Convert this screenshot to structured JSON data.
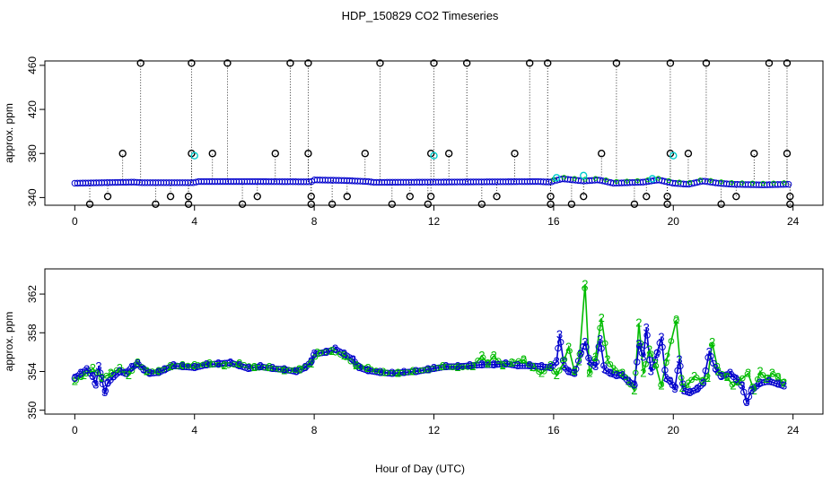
{
  "title": "HDP_150829  CO2 Timeseries",
  "xlabel": "Hour of Day (UTC)",
  "colors": {
    "black": "#000000",
    "blue": "#0000cc",
    "cyan": "#00cccc",
    "green": "#00bb00"
  },
  "chart_data": [
    {
      "type": "scatter",
      "ylabel": "approx. ppm",
      "xlim": [
        -1,
        25
      ],
      "ylim": [
        333,
        464
      ],
      "xticks": [
        0,
        4,
        8,
        12,
        16,
        20,
        24
      ],
      "xtick_labels": [
        "0",
        "4",
        "8",
        "12",
        "16",
        "20",
        "24"
      ],
      "yticks": [
        340,
        380,
        420,
        460
      ],
      "ytick_labels": [
        "340",
        "380",
        "420",
        "460"
      ],
      "baseline": [
        [
          0,
          353
        ],
        [
          2,
          354
        ],
        [
          2.2,
          353.5
        ],
        [
          4,
          353.5
        ],
        [
          4.1,
          354.5
        ],
        [
          6,
          354.5
        ],
        [
          7.9,
          354.3
        ],
        [
          8,
          356
        ],
        [
          9,
          355.5
        ],
        [
          9.8,
          354.5
        ],
        [
          10,
          353.8
        ],
        [
          12,
          354
        ],
        [
          15.5,
          354.5
        ],
        [
          15.9,
          354
        ],
        [
          16,
          355
        ],
        [
          16.3,
          357
        ],
        [
          17,
          355
        ],
        [
          17.5,
          356
        ],
        [
          18,
          353
        ],
        [
          19,
          354
        ],
        [
          19.5,
          356
        ],
        [
          20,
          353
        ],
        [
          20.5,
          352
        ],
        [
          21,
          355
        ],
        [
          21.5,
          353
        ],
        [
          22,
          352
        ],
        [
          23,
          351.5
        ],
        [
          23.8,
          352
        ]
      ],
      "spikes": [
        [
          2.2,
          462
        ],
        [
          3.9,
          462
        ],
        [
          5.1,
          462
        ],
        [
          7.2,
          462
        ],
        [
          7.8,
          462
        ],
        [
          10.2,
          462
        ],
        [
          12.0,
          462
        ],
        [
          13.1,
          462
        ],
        [
          15.2,
          462
        ],
        [
          15.8,
          462
        ],
        [
          18.1,
          462
        ],
        [
          19.9,
          462
        ],
        [
          21.1,
          462
        ],
        [
          23.2,
          462
        ],
        [
          23.8,
          462
        ],
        [
          1.6,
          380
        ],
        [
          3.9,
          380
        ],
        [
          4.6,
          380
        ],
        [
          6.7,
          380
        ],
        [
          7.8,
          380
        ],
        [
          9.7,
          380
        ],
        [
          11.9,
          380
        ],
        [
          12.5,
          380
        ],
        [
          14.7,
          380
        ],
        [
          17.6,
          380
        ],
        [
          19.9,
          380
        ],
        [
          20.5,
          380
        ],
        [
          22.7,
          380
        ],
        [
          23.8,
          380
        ],
        [
          1.1,
          341
        ],
        [
          3.2,
          341
        ],
        [
          3.8,
          341
        ],
        [
          6.1,
          341
        ],
        [
          7.9,
          341
        ],
        [
          9.1,
          341
        ],
        [
          11.2,
          341
        ],
        [
          11.9,
          341
        ],
        [
          14.1,
          341
        ],
        [
          15.9,
          341
        ],
        [
          17.0,
          341
        ],
        [
          19.1,
          341
        ],
        [
          19.8,
          341
        ],
        [
          22.1,
          341
        ],
        [
          23.9,
          341
        ],
        [
          0.5,
          334
        ],
        [
          2.7,
          334
        ],
        [
          3.8,
          334
        ],
        [
          5.6,
          334
        ],
        [
          7.9,
          334
        ],
        [
          8.6,
          334
        ],
        [
          10.6,
          334
        ],
        [
          11.8,
          334
        ],
        [
          13.6,
          334
        ],
        [
          15.9,
          334
        ],
        [
          16.6,
          334
        ],
        [
          18.7,
          334
        ],
        [
          19.8,
          334
        ],
        [
          21.6,
          334
        ],
        [
          23.9,
          334
        ]
      ],
      "cyan_points": [
        [
          4.0,
          378
        ],
        [
          12.0,
          378
        ],
        [
          20.0,
          378
        ],
        [
          16.1,
          358
        ],
        [
          17.0,
          360
        ],
        [
          19.3,
          357
        ]
      ]
    },
    {
      "type": "line",
      "ylabel": "approx. ppm",
      "xlim": [
        -1,
        25
      ],
      "ylim": [
        349.6,
        364.6
      ],
      "xticks": [
        0,
        4,
        8,
        12,
        16,
        20,
        24
      ],
      "xtick_labels": [
        "0",
        "4",
        "8",
        "12",
        "16",
        "20",
        "24"
      ],
      "yticks": [
        350,
        354,
        358,
        362
      ],
      "ytick_labels": [
        "350",
        "354",
        "358",
        "362"
      ],
      "series": [
        {
          "color": "#0000cc",
          "glyph": "3",
          "points": [
            [
              0,
              353.3
            ],
            [
              0.2,
              353.8
            ],
            [
              0.4,
              354.2
            ],
            [
              0.6,
              353.5
            ],
            [
              0.7,
              352.6
            ],
            [
              0.8,
              354.5
            ],
            [
              0.9,
              353.2
            ],
            [
              1.0,
              351.8
            ],
            [
              1.1,
              352.8
            ],
            [
              1.3,
              353.5
            ],
            [
              1.5,
              354.0
            ],
            [
              1.7,
              353.8
            ],
            [
              1.9,
              354.4
            ],
            [
              2.1,
              354.8
            ],
            [
              2.3,
              354.2
            ],
            [
              2.5,
              353.8
            ],
            [
              2.8,
              353.9
            ],
            [
              3.0,
              354.2
            ],
            [
              3.3,
              354.6
            ],
            [
              3.6,
              354.5
            ],
            [
              4.0,
              354.4
            ],
            [
              4.4,
              354.7
            ],
            [
              4.8,
              354.8
            ],
            [
              5.2,
              354.9
            ],
            [
              5.5,
              354.6
            ],
            [
              5.8,
              354.3
            ],
            [
              6.2,
              354.5
            ],
            [
              6.6,
              354.3
            ],
            [
              7.0,
              354.2
            ],
            [
              7.4,
              354.0
            ],
            [
              7.7,
              354.4
            ],
            [
              7.9,
              355.0
            ],
            [
              8.0,
              355.8
            ],
            [
              8.4,
              356.0
            ],
            [
              8.7,
              356.3
            ],
            [
              9.0,
              355.8
            ],
            [
              9.3,
              355.2
            ],
            [
              9.5,
              354.4
            ],
            [
              9.8,
              354.1
            ],
            [
              10.2,
              353.9
            ],
            [
              10.6,
              353.8
            ],
            [
              11.0,
              353.9
            ],
            [
              11.4,
              354.0
            ],
            [
              11.8,
              354.2
            ],
            [
              12.0,
              354.3
            ],
            [
              12.4,
              354.5
            ],
            [
              12.8,
              354.5
            ],
            [
              13.2,
              354.6
            ],
            [
              13.6,
              354.7
            ],
            [
              14.0,
              354.7
            ],
            [
              14.4,
              354.8
            ],
            [
              14.8,
              354.6
            ],
            [
              15.2,
              354.6
            ],
            [
              15.6,
              354.5
            ],
            [
              15.9,
              354.4
            ],
            [
              16.1,
              355.0
            ],
            [
              16.2,
              357.8
            ],
            [
              16.35,
              354.5
            ],
            [
              16.5,
              354.0
            ],
            [
              16.7,
              353.8
            ],
            [
              16.9,
              355.8
            ],
            [
              17.05,
              357.0
            ],
            [
              17.2,
              355.0
            ],
            [
              17.4,
              354.5
            ],
            [
              17.55,
              357.3
            ],
            [
              17.7,
              354.2
            ],
            [
              17.9,
              353.8
            ],
            [
              18.1,
              353.6
            ],
            [
              18.3,
              353.6
            ],
            [
              18.5,
              353.0
            ],
            [
              18.7,
              352.6
            ],
            [
              18.85,
              356.8
            ],
            [
              19.0,
              355.5
            ],
            [
              19.1,
              358.5
            ],
            [
              19.25,
              354.0
            ],
            [
              19.45,
              355.8
            ],
            [
              19.6,
              357.5
            ],
            [
              19.75,
              353.3
            ],
            [
              19.9,
              353.0
            ],
            [
              20.05,
              352.2
            ],
            [
              20.2,
              355.2
            ],
            [
              20.35,
              352.0
            ],
            [
              20.55,
              351.8
            ],
            [
              20.8,
              352.2
            ],
            [
              21.0,
              352.8
            ],
            [
              21.2,
              356.0
            ],
            [
              21.4,
              354.3
            ],
            [
              21.6,
              353.5
            ],
            [
              21.9,
              353.8
            ],
            [
              22.1,
              353.2
            ],
            [
              22.3,
              352.5
            ],
            [
              22.45,
              350.8
            ],
            [
              22.6,
              352.0
            ],
            [
              22.9,
              352.8
            ],
            [
              23.2,
              353.0
            ],
            [
              23.5,
              352.7
            ],
            [
              23.7,
              352.5
            ]
          ]
        },
        {
          "color": "#00bb00",
          "glyph": "2",
          "points": [
            [
              0,
              353.0
            ],
            [
              0.3,
              353.6
            ],
            [
              0.6,
              354.3
            ],
            [
              0.9,
              353.3
            ],
            [
              1.2,
              353.8
            ],
            [
              1.5,
              354.3
            ],
            [
              1.8,
              353.6
            ],
            [
              2.1,
              354.9
            ],
            [
              2.4,
              354.0
            ],
            [
              2.8,
              354.0
            ],
            [
              3.2,
              354.5
            ],
            [
              3.6,
              354.6
            ],
            [
              4.0,
              354.6
            ],
            [
              4.5,
              354.8
            ],
            [
              5.0,
              354.6
            ],
            [
              5.5,
              354.8
            ],
            [
              6.0,
              354.4
            ],
            [
              6.5,
              354.4
            ],
            [
              7.0,
              354.1
            ],
            [
              7.5,
              354.2
            ],
            [
              7.9,
              354.8
            ],
            [
              8.1,
              355.9
            ],
            [
              8.6,
              356.1
            ],
            [
              9.0,
              355.6
            ],
            [
              9.4,
              354.6
            ],
            [
              9.8,
              354.3
            ],
            [
              10.3,
              353.9
            ],
            [
              10.8,
              353.8
            ],
            [
              11.3,
              354.0
            ],
            [
              11.8,
              354.2
            ],
            [
              12.3,
              354.5
            ],
            [
              12.8,
              354.4
            ],
            [
              13.3,
              354.5
            ],
            [
              13.6,
              355.6
            ],
            [
              13.8,
              354.8
            ],
            [
              14.0,
              355.6
            ],
            [
              14.3,
              354.6
            ],
            [
              14.6,
              354.9
            ],
            [
              15.0,
              355.2
            ],
            [
              15.3,
              354.4
            ],
            [
              15.6,
              353.8
            ],
            [
              15.9,
              354.6
            ],
            [
              16.1,
              353.6
            ],
            [
              16.3,
              354.7
            ],
            [
              16.5,
              356.5
            ],
            [
              16.7,
              354.0
            ],
            [
              16.85,
              355.0
            ],
            [
              17.05,
              363.0
            ],
            [
              17.2,
              353.8
            ],
            [
              17.4,
              355.5
            ],
            [
              17.6,
              359.5
            ],
            [
              17.8,
              355.2
            ],
            [
              18.0,
              354.2
            ],
            [
              18.3,
              353.8
            ],
            [
              18.5,
              353.0
            ],
            [
              18.7,
              352.0
            ],
            [
              18.85,
              359.0
            ],
            [
              19.0,
              353.8
            ],
            [
              19.2,
              356.2
            ],
            [
              19.4,
              354.8
            ],
            [
              19.6,
              352.5
            ],
            [
              19.8,
              355.5
            ],
            [
              20.1,
              359.3
            ],
            [
              20.3,
              352.3
            ],
            [
              20.5,
              352.7
            ],
            [
              20.7,
              353.5
            ],
            [
              21.0,
              353.0
            ],
            [
              21.15,
              353.3
            ],
            [
              21.3,
              357.0
            ],
            [
              21.5,
              354.0
            ],
            [
              21.8,
              353.4
            ],
            [
              22.0,
              352.5
            ],
            [
              22.2,
              353.0
            ],
            [
              22.5,
              353.8
            ],
            [
              22.7,
              352.0
            ],
            [
              22.9,
              354.0
            ],
            [
              23.1,
              353.2
            ],
            [
              23.3,
              353.8
            ],
            [
              23.5,
              353.4
            ],
            [
              23.7,
              352.8
            ]
          ]
        }
      ]
    }
  ]
}
